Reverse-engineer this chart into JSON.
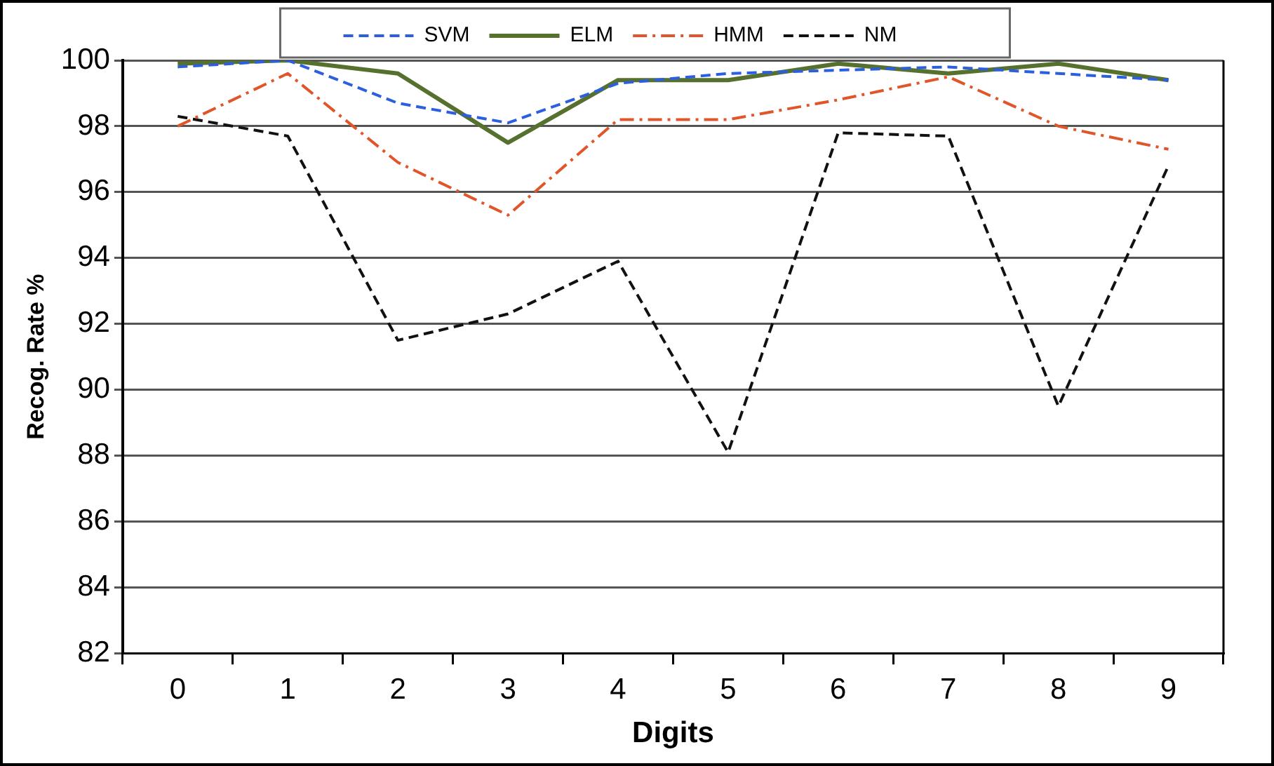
{
  "chart_data": {
    "type": "line",
    "xlabel": "Digits",
    "ylabel": "Recog. Rate %",
    "categories": [
      "0",
      "1",
      "2",
      "3",
      "4",
      "5",
      "6",
      "7",
      "8",
      "9"
    ],
    "series": [
      {
        "name": "SVM",
        "color": "#2b5fe0",
        "line_style": "dashed",
        "values": [
          99.8,
          100,
          98.7,
          98.1,
          99.3,
          99.6,
          99.7,
          99.8,
          99.6,
          99.4
        ]
      },
      {
        "name": "ELM",
        "color": "#56702e",
        "line_style": "solid",
        "values": [
          99.9,
          100,
          99.6,
          97.5,
          99.4,
          99.4,
          99.9,
          99.6,
          99.9,
          99.4
        ]
      },
      {
        "name": "HMM",
        "color": "#e0552a",
        "line_style": "dashdot",
        "values": [
          98.0,
          99.6,
          96.9,
          95.3,
          98.2,
          98.2,
          98.8,
          99.5,
          98.0,
          97.3
        ]
      },
      {
        "name": "NM",
        "color": "#111111",
        "line_style": "dashed",
        "values": [
          98.3,
          97.7,
          91.5,
          92.3,
          93.9,
          88.1,
          97.8,
          97.7,
          89.5,
          96.8
        ]
      }
    ],
    "ylim": [
      82,
      100
    ],
    "yticks": [
      82,
      84,
      86,
      88,
      90,
      92,
      94,
      96,
      98,
      100
    ],
    "grid": "y",
    "legend": "top",
    "marker": "none"
  }
}
